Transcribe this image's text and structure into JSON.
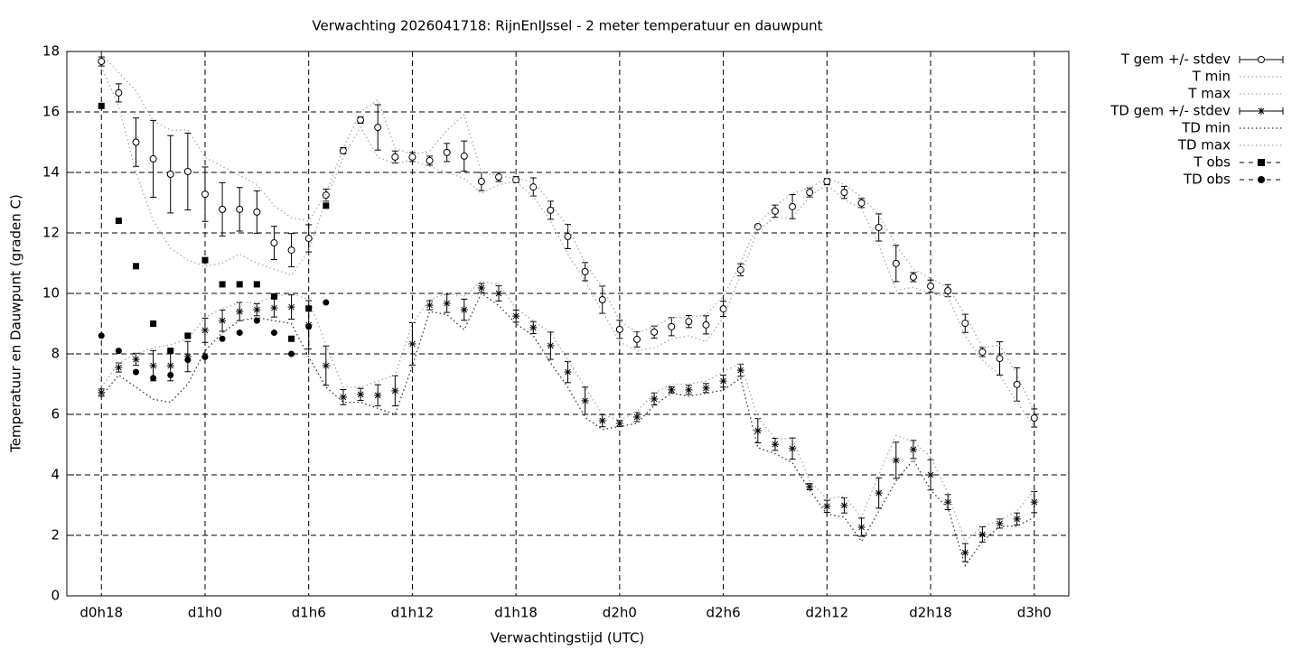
{
  "chart_data": {
    "type": "errorbar-line",
    "title": "Verwachting 2026041718: RijnEnIJssel - 2 meter temperatuur en dauwpunt",
    "xlabel": "Verwachtingstijd (UTC)",
    "ylabel": "Temperatuur en Dauwpunt (graden C)",
    "categories": [
      "d0h18",
      null,
      null,
      null,
      null,
      null,
      "d1h0",
      null,
      null,
      null,
      null,
      null,
      "d1h6",
      null,
      null,
      null,
      null,
      null,
      "d1h12",
      null,
      null,
      null,
      null,
      null,
      "d1h18",
      null,
      null,
      null,
      null,
      null,
      "d2h0",
      null,
      null,
      null,
      null,
      null,
      "d2h6",
      null,
      null,
      null,
      null,
      null,
      "d2h12",
      null,
      null,
      null,
      null,
      null,
      "d2h18",
      null,
      null,
      null,
      null,
      null,
      "d3h0"
    ],
    "ylim": [
      0,
      18
    ],
    "yticks": [
      0,
      2,
      4,
      6,
      8,
      10,
      12,
      14,
      16,
      18
    ],
    "grid": true,
    "legend": "outside-top-right",
    "series": [
      {
        "name": "T gem +/- stdev",
        "color": "#000000",
        "style": "errorbar",
        "marker": "circle-open",
        "values": [
          17.67,
          16.63,
          15.0,
          14.45,
          13.94,
          14.03,
          13.28,
          12.78,
          12.78,
          12.69,
          11.67,
          11.43,
          11.82,
          13.25,
          14.72,
          15.73,
          15.49,
          14.51,
          14.51,
          14.39,
          14.66,
          14.54,
          13.7,
          13.85,
          13.76,
          13.52,
          12.75,
          11.88,
          10.72,
          9.79,
          8.81,
          8.48,
          8.72,
          8.9,
          9.07,
          8.96,
          9.49,
          10.78,
          12.21,
          12.72,
          12.87,
          13.34,
          13.7,
          13.34,
          12.99,
          12.18,
          10.99,
          10.54,
          10.24,
          10.09,
          9.01,
          8.06,
          7.85,
          6.99,
          5.88
        ],
        "errors": [
          0.15,
          0.3,
          0.8,
          1.27,
          1.28,
          1.27,
          0.9,
          0.88,
          0.72,
          0.7,
          0.55,
          0.55,
          0.45,
          0.2,
          0.1,
          0.1,
          0.75,
          0.2,
          0.15,
          0.15,
          0.3,
          0.5,
          0.3,
          0.15,
          0.1,
          0.3,
          0.3,
          0.4,
          0.3,
          0.45,
          0.3,
          0.25,
          0.2,
          0.3,
          0.2,
          0.3,
          0.25,
          0.2,
          0.05,
          0.2,
          0.4,
          0.15,
          0.1,
          0.2,
          0.15,
          0.45,
          0.6,
          0.15,
          0.2,
          0.2,
          0.3,
          0.15,
          0.55,
          0.55,
          0.3
        ]
      },
      {
        "name": "T min",
        "color": "#aaaaaa",
        "style": "dotted",
        "values": [
          17.5,
          16.2,
          14.0,
          12.4,
          11.5,
          11.1,
          10.9,
          11.0,
          11.3,
          11.0,
          10.8,
          10.6,
          11.4,
          13.1,
          14.5,
          15.5,
          14.5,
          14.3,
          14.4,
          14.2,
          14.0,
          13.8,
          13.3,
          13.6,
          13.7,
          13.2,
          12.4,
          11.3,
          10.4,
          9.4,
          8.4,
          8.1,
          8.2,
          8.5,
          8.6,
          8.4,
          9.2,
          10.6,
          12.1,
          12.5,
          12.5,
          13.2,
          13.6,
          13.1,
          12.8,
          11.6,
          10.1,
          10.2,
          10.0,
          9.9,
          8.6,
          7.8,
          7.3,
          6.4,
          5.6
        ]
      },
      {
        "name": "T max",
        "color": "#aaaaaa",
        "style": "dotted",
        "values": [
          17.9,
          17.3,
          16.7,
          15.7,
          15.4,
          15.4,
          14.5,
          14.2,
          13.9,
          13.6,
          12.9,
          12.5,
          12.4,
          13.3,
          14.8,
          16.0,
          16.4,
          14.8,
          14.6,
          14.7,
          15.4,
          15.9,
          14.0,
          13.9,
          13.8,
          13.7,
          13.0,
          12.2,
          11.0,
          10.2,
          9.1,
          8.7,
          8.9,
          9.2,
          9.2,
          9.3,
          9.9,
          11.0,
          12.3,
          12.9,
          13.3,
          13.5,
          13.8,
          13.6,
          13.2,
          12.6,
          11.6,
          10.8,
          10.5,
          10.2,
          9.3,
          8.2,
          8.3,
          7.3,
          6.1
        ]
      },
      {
        "name": "TD gem +/- stdev",
        "color": "#000000",
        "style": "errorbar",
        "marker": "star",
        "values": [
          6.72,
          7.55,
          7.82,
          7.61,
          7.61,
          7.91,
          8.78,
          9.1,
          9.4,
          9.46,
          9.52,
          9.55,
          8.96,
          7.61,
          6.57,
          6.66,
          6.63,
          6.78,
          8.33,
          9.61,
          9.67,
          9.46,
          10.18,
          10.0,
          9.25,
          8.87,
          8.27,
          7.4,
          6.45,
          5.79,
          5.7,
          5.91,
          6.51,
          6.81,
          6.81,
          6.87,
          7.1,
          7.46,
          5.46,
          5.01,
          4.87,
          3.61,
          2.96,
          2.99,
          2.27,
          3.4,
          4.48,
          4.84,
          4.0,
          3.1,
          1.43,
          2.03,
          2.39,
          2.54,
          3.1
        ],
        "errors": [
          0.12,
          0.15,
          0.2,
          0.5,
          0.5,
          0.5,
          0.4,
          0.35,
          0.3,
          0.2,
          0.3,
          0.4,
          0.8,
          0.65,
          0.25,
          0.2,
          0.35,
          0.5,
          0.7,
          0.15,
          0.3,
          0.35,
          0.15,
          0.25,
          0.2,
          0.2,
          0.45,
          0.35,
          0.45,
          0.2,
          0.1,
          0.15,
          0.2,
          0.1,
          0.15,
          0.15,
          0.2,
          0.2,
          0.4,
          0.2,
          0.35,
          0.1,
          0.2,
          0.25,
          0.3,
          0.5,
          0.6,
          0.3,
          0.5,
          0.25,
          0.3,
          0.25,
          0.15,
          0.2,
          0.35
        ]
      },
      {
        "name": "TD min",
        "color": "#333333",
        "style": "dotted",
        "values": [
          6.6,
          7.3,
          6.9,
          6.5,
          6.4,
          7.0,
          8.1,
          8.7,
          9.1,
          9.2,
          9.1,
          9.0,
          7.9,
          6.9,
          6.4,
          6.4,
          6.2,
          6.0,
          7.6,
          9.4,
          9.3,
          8.8,
          10.0,
          9.6,
          9.0,
          8.6,
          7.7,
          6.9,
          5.9,
          5.5,
          5.6,
          5.7,
          6.3,
          6.7,
          6.6,
          6.7,
          6.8,
          7.2,
          4.9,
          4.7,
          4.4,
          3.5,
          2.7,
          2.6,
          1.8,
          2.8,
          3.8,
          4.5,
          3.5,
          2.9,
          1.0,
          1.8,
          2.3,
          2.3,
          2.6
        ]
      },
      {
        "name": "TD max",
        "color": "#aaaaaa",
        "style": "dotted",
        "values": [
          6.9,
          7.7,
          8.0,
          8.2,
          8.3,
          8.5,
          9.2,
          9.5,
          9.7,
          9.7,
          9.9,
          10.0,
          9.8,
          8.3,
          6.9,
          6.9,
          7.1,
          7.3,
          9.0,
          9.8,
          10.0,
          9.9,
          10.4,
          10.3,
          9.5,
          9.1,
          8.7,
          7.8,
          6.9,
          6.0,
          5.8,
          6.1,
          6.7,
          7.0,
          7.0,
          7.1,
          7.4,
          7.7,
          5.9,
          5.2,
          5.2,
          3.8,
          3.2,
          3.3,
          2.6,
          4.0,
          5.3,
          5.1,
          4.6,
          3.4,
          1.8,
          2.3,
          2.5,
          2.8,
          3.5
        ]
      },
      {
        "name": "T obs",
        "color": "#000000",
        "style": "points",
        "marker": "square",
        "values": [
          16.2,
          12.4,
          10.9,
          9.0,
          8.1,
          8.6,
          11.1,
          10.3,
          10.3,
          10.3,
          9.9,
          8.5,
          9.5,
          12.9,
          null,
          null,
          null,
          null,
          null,
          null,
          null,
          null,
          null,
          null,
          null,
          null,
          null,
          null,
          null,
          null,
          null,
          null,
          null,
          null,
          null,
          null,
          null,
          null,
          null,
          null,
          null,
          null,
          null,
          null,
          null,
          null,
          null,
          null,
          null,
          null,
          null,
          null,
          null,
          null,
          null
        ]
      },
      {
        "name": "TD obs",
        "color": "#000000",
        "style": "points",
        "marker": "circle",
        "values": [
          8.6,
          8.1,
          7.4,
          7.2,
          7.3,
          7.8,
          7.9,
          8.5,
          8.7,
          9.1,
          8.7,
          8.0,
          8.9,
          9.7,
          null,
          null,
          null,
          null,
          null,
          null,
          null,
          null,
          null,
          null,
          null,
          null,
          null,
          null,
          null,
          null,
          null,
          null,
          null,
          null,
          null,
          null,
          null,
          null,
          null,
          null,
          null,
          null,
          null,
          null,
          null,
          null,
          null,
          null,
          null,
          null,
          null,
          null,
          null,
          null,
          null
        ]
      }
    ]
  }
}
